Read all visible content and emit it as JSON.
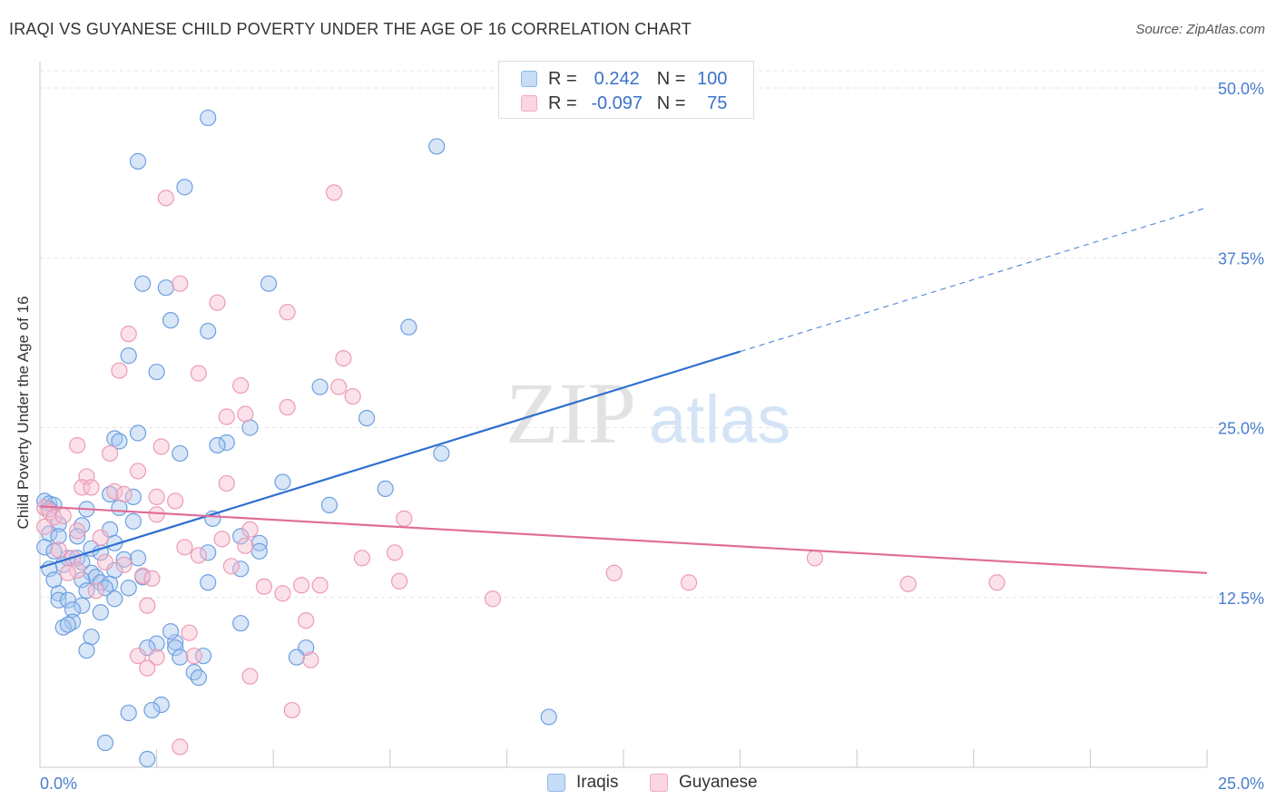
{
  "title": "IRAQI VS GUYANESE CHILD POVERTY UNDER THE AGE OF 16 CORRELATION CHART",
  "source": "Source: ZipAtlas.com",
  "watermark": {
    "zip": "ZIP",
    "atlas": "atlas"
  },
  "legend": {
    "rows": [
      {
        "r_label": "R =",
        "r_value": "0.242",
        "n_label": "N =",
        "n_value": "100",
        "color": "#a9c8f0"
      },
      {
        "r_label": "R =",
        "r_value": "-0.097",
        "n_label": "N =",
        "n_value": "75",
        "color": "#f6bfd0"
      }
    ]
  },
  "bottom_legend": [
    {
      "label": "Iraqis",
      "color": "#a9c8f0"
    },
    {
      "label": "Guyanese",
      "color": "#f6bfd0"
    }
  ],
  "chart_data": {
    "type": "scatter",
    "title": "IRAQI VS GUYANESE CHILD POVERTY UNDER THE AGE OF 16 CORRELATION CHART",
    "xlabel": "",
    "ylabel": "Child Poverty Under the Age of 16",
    "xlim": [
      0,
      25
    ],
    "ylim": [
      0,
      50
    ],
    "x_ticks": [
      {
        "v": 0,
        "label": "0.0%"
      },
      {
        "v": 25,
        "label": "25.0%"
      }
    ],
    "y_ticks": [
      {
        "v": 12.5,
        "label": "12.5%"
      },
      {
        "v": 25,
        "label": "25.0%"
      },
      {
        "v": 37.5,
        "label": "37.5%"
      },
      {
        "v": 50,
        "label": "50.0%"
      }
    ],
    "grid": "horizontal dashed",
    "legend_placement": "top-center",
    "series": [
      {
        "name": "Iraqis",
        "color": "#a9c8f0",
        "stroke": "#6e9fe0",
        "trend": {
          "x0": 0,
          "y0": 14.7,
          "x1": 15,
          "y1": 30.6,
          "dash_to_x": 25,
          "dash_y": 41.2,
          "color": "#2f6fd0"
        },
        "points": [
          [
            3.6,
            47.8
          ],
          [
            8.5,
            45.7
          ],
          [
            2.1,
            44.6
          ],
          [
            3.1,
            42.7
          ],
          [
            2.2,
            35.6
          ],
          [
            2.7,
            35.3
          ],
          [
            4.9,
            35.6
          ],
          [
            2.8,
            32.9
          ],
          [
            3.6,
            32.1
          ],
          [
            7.9,
            32.4
          ],
          [
            1.9,
            30.3
          ],
          [
            2.5,
            29.1
          ],
          [
            6.0,
            28.0
          ],
          [
            7.0,
            25.7
          ],
          [
            2.1,
            24.6
          ],
          [
            1.6,
            24.2
          ],
          [
            1.7,
            24.0
          ],
          [
            4.0,
            23.9
          ],
          [
            3.8,
            23.7
          ],
          [
            4.5,
            25.0
          ],
          [
            3.0,
            23.1
          ],
          [
            8.6,
            23.1
          ],
          [
            7.4,
            20.5
          ],
          [
            2.0,
            19.9
          ],
          [
            0.1,
            19.6
          ],
          [
            0.2,
            19.4
          ],
          [
            0.3,
            19.3
          ],
          [
            0.2,
            19.0
          ],
          [
            1.7,
            19.1
          ],
          [
            1.0,
            19.0
          ],
          [
            3.7,
            18.3
          ],
          [
            2.0,
            18.1
          ],
          [
            0.4,
            17.9
          ],
          [
            0.9,
            17.8
          ],
          [
            1.5,
            17.5
          ],
          [
            0.2,
            17.2
          ],
          [
            0.4,
            17.0
          ],
          [
            0.8,
            17.0
          ],
          [
            1.6,
            16.5
          ],
          [
            0.1,
            16.2
          ],
          [
            1.1,
            16.1
          ],
          [
            4.7,
            16.5
          ],
          [
            0.3,
            15.9
          ],
          [
            1.3,
            15.8
          ],
          [
            0.6,
            15.4
          ],
          [
            0.8,
            15.4
          ],
          [
            0.9,
            15.1
          ],
          [
            1.8,
            15.3
          ],
          [
            2.1,
            15.4
          ],
          [
            4.7,
            15.9
          ],
          [
            3.6,
            15.8
          ],
          [
            0.5,
            14.9
          ],
          [
            0.2,
            14.6
          ],
          [
            1.6,
            14.5
          ],
          [
            1.1,
            14.3
          ],
          [
            1.2,
            14.0
          ],
          [
            2.2,
            14.0
          ],
          [
            0.3,
            13.8
          ],
          [
            0.9,
            13.8
          ],
          [
            1.3,
            13.6
          ],
          [
            1.5,
            13.5
          ],
          [
            1.4,
            13.2
          ],
          [
            1.0,
            13.0
          ],
          [
            1.9,
            13.2
          ],
          [
            3.6,
            13.6
          ],
          [
            4.3,
            14.6
          ],
          [
            0.4,
            12.8
          ],
          [
            0.4,
            12.3
          ],
          [
            0.6,
            12.3
          ],
          [
            1.6,
            12.4
          ],
          [
            0.9,
            11.9
          ],
          [
            0.7,
            11.6
          ],
          [
            1.3,
            11.4
          ],
          [
            0.7,
            10.7
          ],
          [
            0.5,
            10.3
          ],
          [
            4.3,
            10.6
          ],
          [
            1.1,
            9.6
          ],
          [
            2.5,
            9.1
          ],
          [
            2.9,
            9.2
          ],
          [
            2.9,
            8.8
          ],
          [
            2.3,
            8.8
          ],
          [
            5.7,
            8.8
          ],
          [
            3.5,
            8.2
          ],
          [
            5.5,
            8.1
          ],
          [
            1.0,
            8.6
          ],
          [
            3.0,
            8.1
          ],
          [
            3.3,
            7.0
          ],
          [
            3.4,
            6.6
          ],
          [
            2.6,
            4.6
          ],
          [
            2.4,
            4.2
          ],
          [
            1.9,
            4.0
          ],
          [
            10.9,
            3.7
          ],
          [
            1.4,
            1.8
          ],
          [
            2.3,
            0.6
          ],
          [
            0.6,
            10.5
          ],
          [
            2.8,
            10.0
          ],
          [
            1.5,
            20.1
          ],
          [
            5.2,
            21.0
          ],
          [
            6.2,
            19.3
          ],
          [
            4.3,
            17.0
          ]
        ]
      },
      {
        "name": "Guyanese",
        "color": "#f6bfd0",
        "stroke": "#ee9ab5",
        "trend": {
          "x0": 0,
          "y0": 19.2,
          "x1": 25,
          "y1": 14.3,
          "color": "#e06d97"
        },
        "points": [
          [
            6.3,
            42.3
          ],
          [
            2.7,
            41.9
          ],
          [
            3.0,
            35.6
          ],
          [
            3.8,
            34.2
          ],
          [
            5.3,
            33.5
          ],
          [
            1.9,
            31.9
          ],
          [
            6.5,
            30.1
          ],
          [
            1.7,
            29.2
          ],
          [
            3.4,
            29.0
          ],
          [
            4.3,
            28.1
          ],
          [
            6.4,
            28.0
          ],
          [
            6.7,
            27.3
          ],
          [
            5.3,
            26.5
          ],
          [
            4.4,
            26.0
          ],
          [
            4.0,
            25.8
          ],
          [
            0.8,
            23.7
          ],
          [
            1.5,
            23.1
          ],
          [
            2.6,
            23.6
          ],
          [
            2.1,
            21.8
          ],
          [
            1.0,
            21.4
          ],
          [
            0.9,
            20.6
          ],
          [
            1.1,
            20.6
          ],
          [
            1.6,
            20.3
          ],
          [
            1.8,
            20.1
          ],
          [
            2.5,
            19.9
          ],
          [
            2.9,
            19.6
          ],
          [
            4.0,
            20.9
          ],
          [
            0.1,
            19.1
          ],
          [
            0.2,
            18.8
          ],
          [
            0.3,
            18.4
          ],
          [
            2.5,
            18.6
          ],
          [
            7.8,
            18.3
          ],
          [
            0.1,
            17.7
          ],
          [
            0.8,
            17.4
          ],
          [
            4.5,
            17.5
          ],
          [
            1.3,
            16.9
          ],
          [
            3.9,
            16.8
          ],
          [
            4.4,
            16.3
          ],
          [
            3.1,
            16.2
          ],
          [
            0.4,
            16.0
          ],
          [
            7.6,
            15.8
          ],
          [
            0.7,
            15.4
          ],
          [
            3.4,
            15.6
          ],
          [
            6.9,
            15.4
          ],
          [
            16.6,
            15.4
          ],
          [
            1.4,
            15.1
          ],
          [
            4.1,
            14.8
          ],
          [
            0.8,
            14.5
          ],
          [
            0.6,
            14.3
          ],
          [
            2.2,
            14.1
          ],
          [
            12.3,
            14.3
          ],
          [
            13.9,
            13.6
          ],
          [
            7.7,
            13.7
          ],
          [
            18.6,
            13.5
          ],
          [
            20.5,
            13.6
          ],
          [
            5.6,
            13.4
          ],
          [
            6.0,
            13.4
          ],
          [
            4.8,
            13.3
          ],
          [
            5.2,
            12.8
          ],
          [
            9.7,
            12.4
          ],
          [
            2.3,
            11.9
          ],
          [
            5.7,
            10.8
          ],
          [
            3.2,
            9.9
          ],
          [
            2.1,
            8.2
          ],
          [
            2.5,
            8.1
          ],
          [
            5.8,
            7.9
          ],
          [
            3.3,
            8.2
          ],
          [
            2.3,
            7.3
          ],
          [
            4.5,
            6.7
          ],
          [
            5.4,
            4.2
          ],
          [
            3.0,
            1.5
          ],
          [
            1.2,
            13.0
          ],
          [
            0.5,
            18.5
          ],
          [
            2.4,
            13.9
          ],
          [
            1.8,
            14.9
          ]
        ]
      }
    ]
  }
}
